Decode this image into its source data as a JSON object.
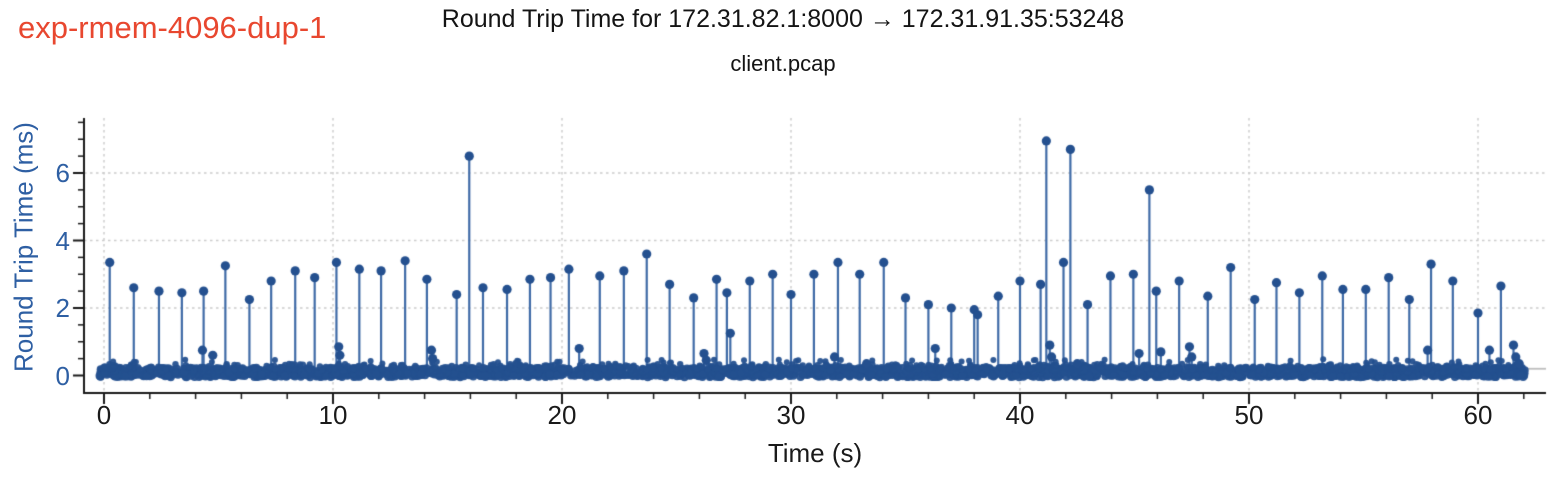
{
  "figure": {
    "experiment_label": "exp-rmem-4096-dup-1",
    "title": "Round Trip Time for 172.31.82.1:8000 → 172.31.91.35:53248",
    "subtitle": "client.pcap"
  },
  "chart_data": {
    "type": "scatter",
    "subtype": "stem",
    "title": "Round Trip Time for 172.31.82.1:8000 → 172.31.91.35:53248",
    "subtitle": "client.pcap",
    "xlabel": "Time (s)",
    "ylabel": "Round Trip Time (ms)",
    "xlim": [
      -0.9,
      63
    ],
    "ylim": [
      -0.55,
      7.6
    ],
    "x_ticks": [
      0,
      10,
      20,
      30,
      40,
      50,
      60
    ],
    "y_ticks": [
      0,
      2,
      4,
      6
    ],
    "x_minor_step": 2,
    "y_minor_step": 0.5,
    "grid": {
      "vertical": "dotted at every 10 s",
      "horizontal": "dotted at 2, 4, 6 ms"
    },
    "legend": "none",
    "colors": {
      "experiment_label": "#E8472F",
      "marker": "#24508F",
      "stem": "#3E6AA6",
      "y_axis_text": "#2E5FA3",
      "x_axis_text": "#1a1a1a",
      "grid": "#cbcbcb",
      "spine": "#1a1a1a",
      "baseline_rule": "#bdbdbd"
    },
    "notable_outliers": [
      [
        15.95,
        6.5
      ],
      [
        41.15,
        6.95
      ],
      [
        42.2,
        6.7
      ],
      [
        45.65,
        5.5
      ]
    ],
    "spikes": [
      [
        0.25,
        3.35
      ],
      [
        1.3,
        2.6
      ],
      [
        2.4,
        2.5
      ],
      [
        3.4,
        2.45
      ],
      [
        4.3,
        0.75
      ],
      [
        4.35,
        2.5
      ],
      [
        4.75,
        0.6
      ],
      [
        5.3,
        3.25
      ],
      [
        6.35,
        2.25
      ],
      [
        7.3,
        2.8
      ],
      [
        8.35,
        3.1
      ],
      [
        9.2,
        2.9
      ],
      [
        10.15,
        3.35
      ],
      [
        10.25,
        0.85
      ],
      [
        10.3,
        0.6
      ],
      [
        11.15,
        3.15
      ],
      [
        12.1,
        3.1
      ],
      [
        13.15,
        3.4
      ],
      [
        14.1,
        2.85
      ],
      [
        14.3,
        0.75
      ],
      [
        14.35,
        0.5
      ],
      [
        15.4,
        2.4
      ],
      [
        15.95,
        6.5
      ],
      [
        16.55,
        2.6
      ],
      [
        17.6,
        2.55
      ],
      [
        18.6,
        2.85
      ],
      [
        19.5,
        2.9
      ],
      [
        20.3,
        3.15
      ],
      [
        20.75,
        0.8
      ],
      [
        21.65,
        2.95
      ],
      [
        22.7,
        3.1
      ],
      [
        23.7,
        3.6
      ],
      [
        24.7,
        2.7
      ],
      [
        25.75,
        2.3
      ],
      [
        26.2,
        0.65
      ],
      [
        26.3,
        0.45
      ],
      [
        26.75,
        2.85
      ],
      [
        27.2,
        2.45
      ],
      [
        27.35,
        1.25
      ],
      [
        28.2,
        2.8
      ],
      [
        29.2,
        3.0
      ],
      [
        30.0,
        2.4
      ],
      [
        31.0,
        3.0
      ],
      [
        31.9,
        0.55
      ],
      [
        32.05,
        3.35
      ],
      [
        33.0,
        3.0
      ],
      [
        33.3,
        0.35
      ],
      [
        34.05,
        3.35
      ],
      [
        35.0,
        2.3
      ],
      [
        36.0,
        2.1
      ],
      [
        36.3,
        0.8
      ],
      [
        37.0,
        2.0
      ],
      [
        38.0,
        1.95
      ],
      [
        38.15,
        1.8
      ],
      [
        39.05,
        2.35
      ],
      [
        40.0,
        2.8
      ],
      [
        40.9,
        2.7
      ],
      [
        41.15,
        6.95
      ],
      [
        41.3,
        0.9
      ],
      [
        41.38,
        0.55
      ],
      [
        41.9,
        3.35
      ],
      [
        42.2,
        6.7
      ],
      [
        42.5,
        0.35
      ],
      [
        42.95,
        2.1
      ],
      [
        43.95,
        2.95
      ],
      [
        44.95,
        3.0
      ],
      [
        45.2,
        0.65
      ],
      [
        45.65,
        5.5
      ],
      [
        45.95,
        2.5
      ],
      [
        46.15,
        0.7
      ],
      [
        46.95,
        2.8
      ],
      [
        47.4,
        0.85
      ],
      [
        47.5,
        0.55
      ],
      [
        48.2,
        2.35
      ],
      [
        49.2,
        3.2
      ],
      [
        50.25,
        2.25
      ],
      [
        51.2,
        2.75
      ],
      [
        52.2,
        2.45
      ],
      [
        53.2,
        2.95
      ],
      [
        54.1,
        2.55
      ],
      [
        55.1,
        2.55
      ],
      [
        56.1,
        2.9
      ],
      [
        57.0,
        2.25
      ],
      [
        57.8,
        0.75
      ],
      [
        57.95,
        3.3
      ],
      [
        58.9,
        2.8
      ],
      [
        60.0,
        1.85
      ],
      [
        60.5,
        0.75
      ],
      [
        61.0,
        2.65
      ],
      [
        61.55,
        0.9
      ],
      [
        61.65,
        0.55
      ],
      [
        61.8,
        0.35
      ]
    ],
    "baseline_band": {
      "description": "dense cloud of RTT samples hugging zero across the whole capture",
      "t_range": [
        0,
        62
      ],
      "v_core_range": [
        0.0,
        0.25
      ],
      "v_scatter_range": [
        0.2,
        0.5
      ],
      "approx_point_count": 2900
    },
    "baseline_rule": {
      "v": 0.2,
      "t_range": [
        61.9,
        63.0
      ]
    }
  }
}
